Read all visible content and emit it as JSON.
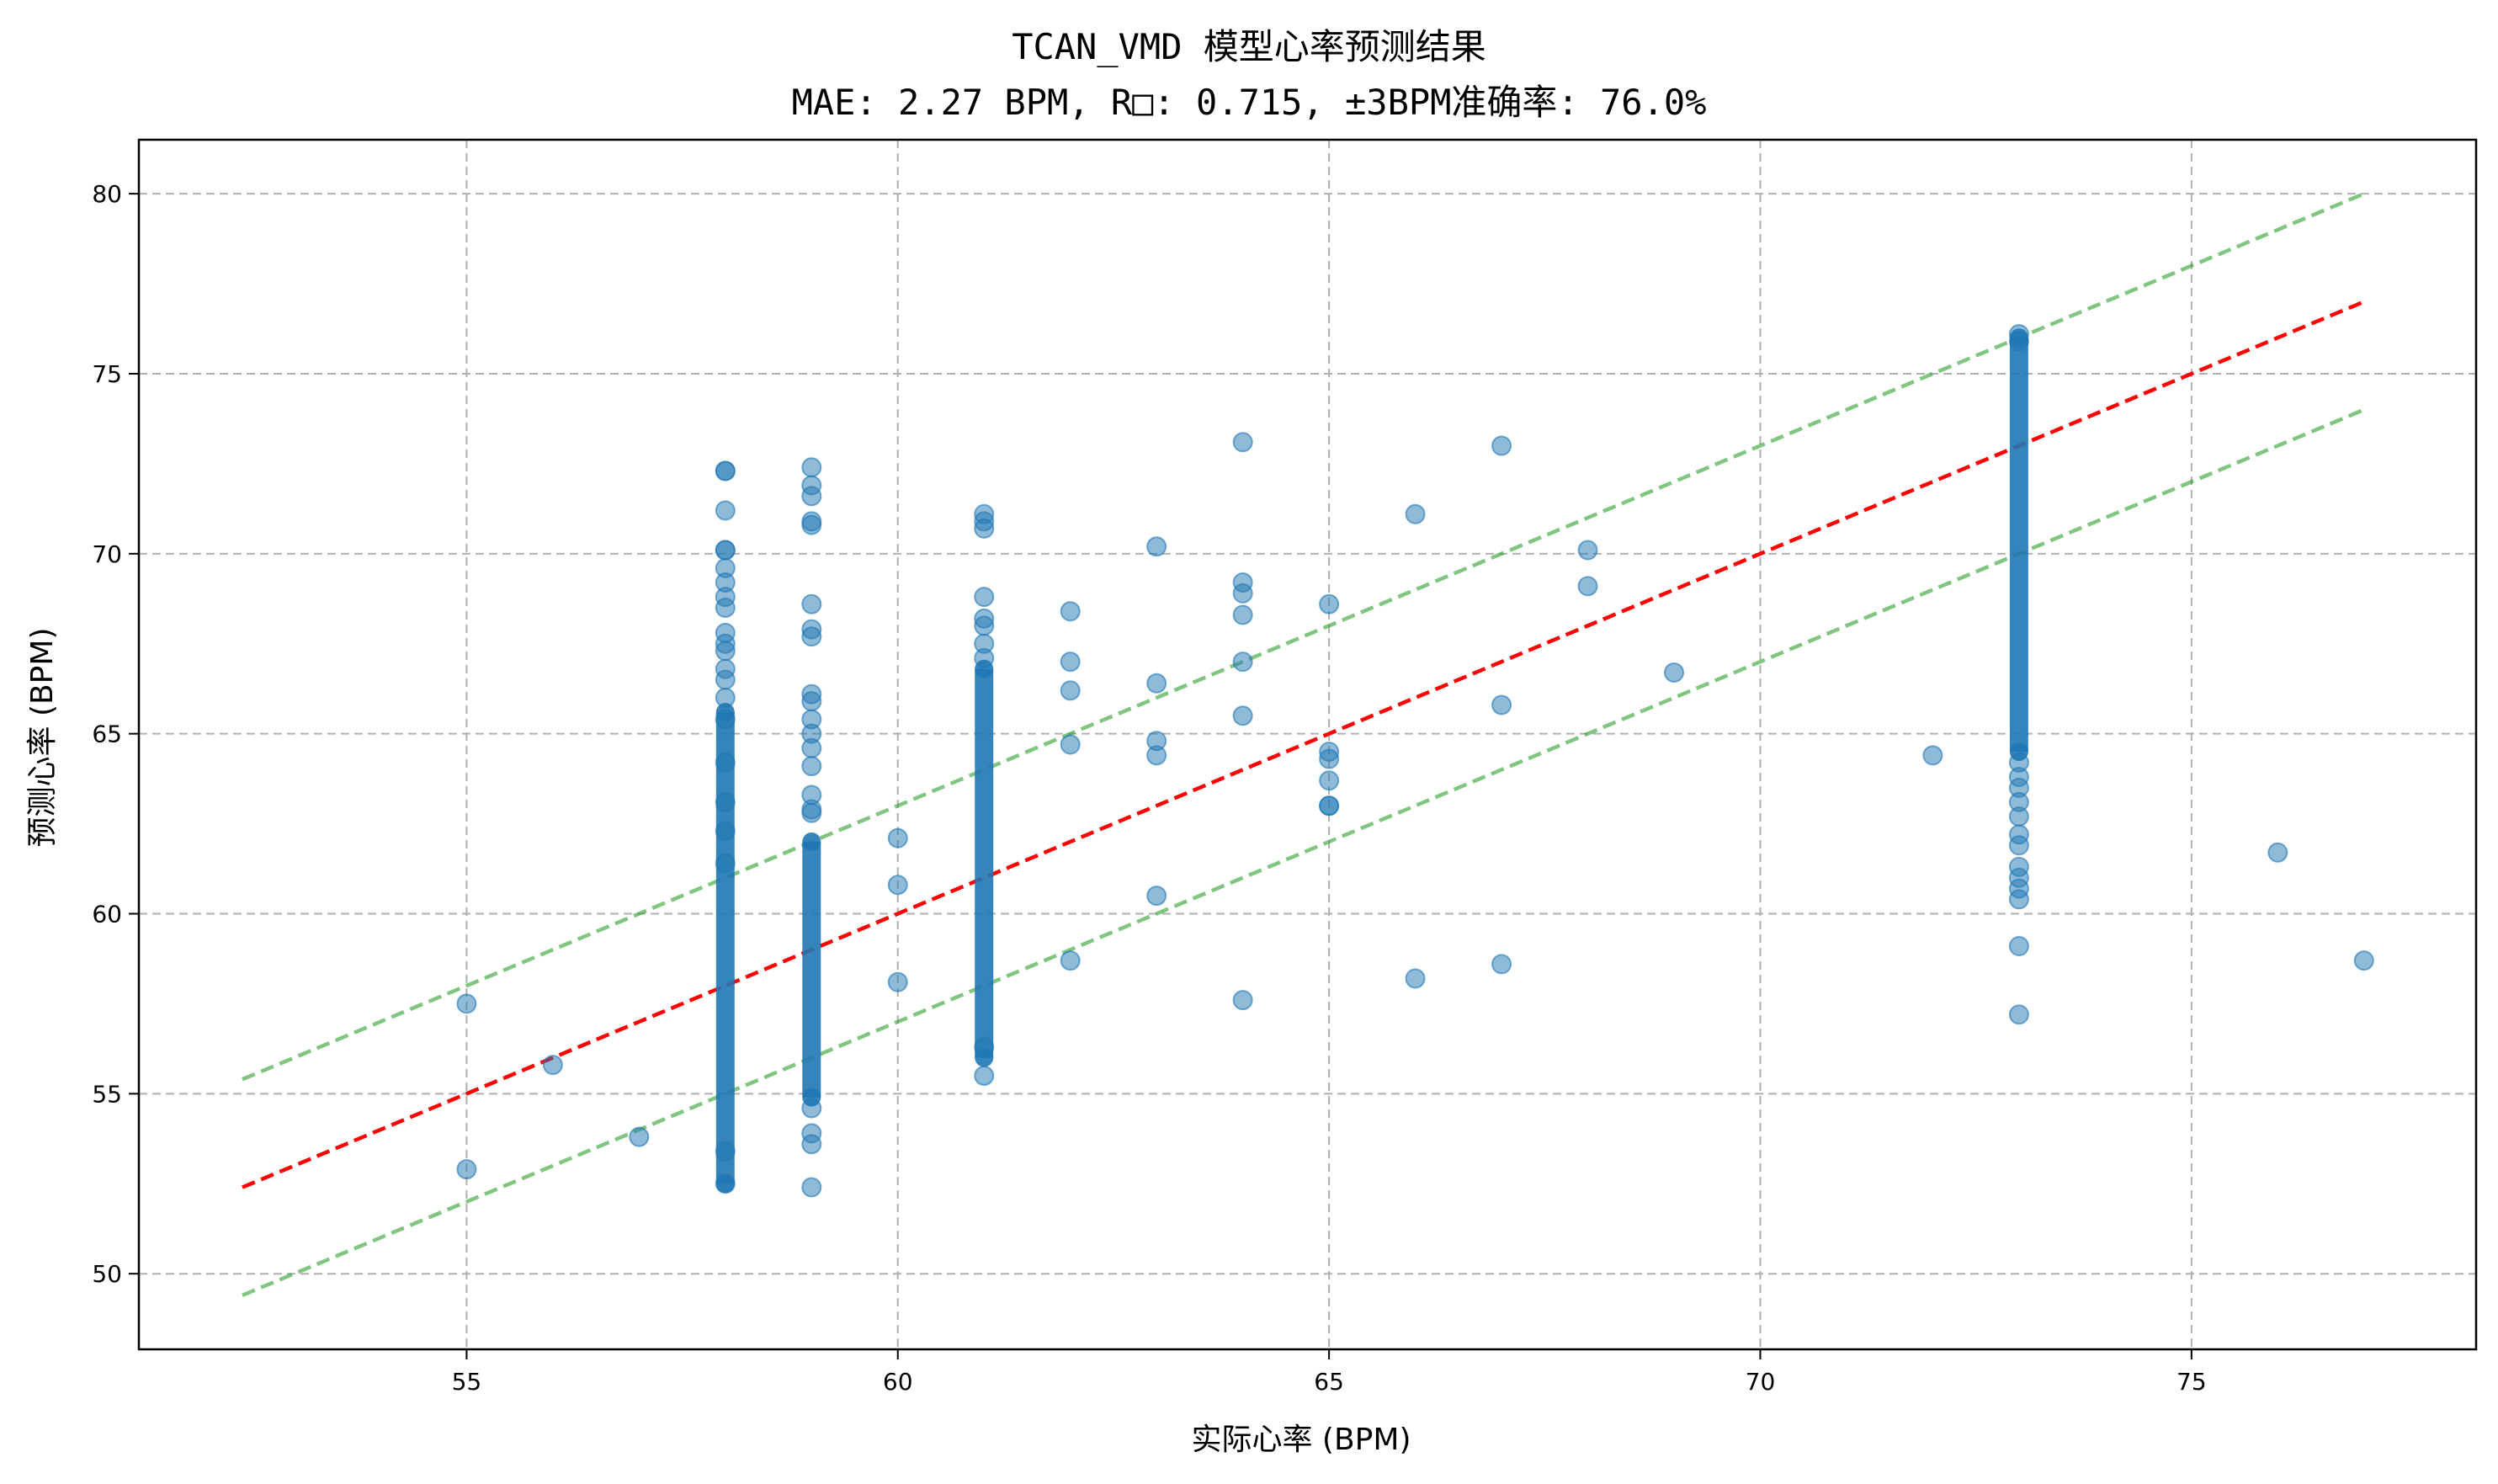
{
  "chart_data": {
    "type": "scatter",
    "title": "TCAN_VMD 模型心率预测结果",
    "subtitle": "MAE: 2.27 BPM, R□: 0.715, ±3BPM准确率: 76.0%",
    "xlabel": "实际心率 (BPM)",
    "ylabel": "预测心率 (BPM)",
    "xlim": [
      51.2,
      78.3
    ],
    "ylim": [
      47.9,
      81.5
    ],
    "xticks": [
      55,
      60,
      65,
      70,
      75
    ],
    "yticks": [
      50,
      55,
      60,
      65,
      70,
      75,
      80
    ],
    "grid": true,
    "legend": "none",
    "colors": {
      "points": "#1f77b4",
      "ideal_line": "#ff0000",
      "band_lines": "#2ca02c"
    },
    "reference_lines": [
      {
        "kind": "ideal",
        "x": [
          52.4,
          77.0
        ],
        "y": [
          52.4,
          77.0
        ]
      },
      {
        "kind": "upper-band",
        "x": [
          52.4,
          77.0
        ],
        "y": [
          55.4,
          80.0
        ]
      },
      {
        "kind": "lower-band",
        "x": [
          52.4,
          77.0
        ],
        "y": [
          49.4,
          74.0
        ]
      }
    ],
    "points_note": "Columns at x=58, 59, 61, 73 contain many overlapping points (dense ranges).",
    "dense_columns": [
      {
        "x": 58,
        "y_min": 52.5,
        "y_max": 65.6
      },
      {
        "x": 59,
        "y_min": 54.9,
        "y_max": 62.0
      },
      {
        "x": 61,
        "y_min": 56.0,
        "y_max": 66.8
      },
      {
        "x": 73,
        "y_min": 64.5,
        "y_max": 76.0
      }
    ],
    "points": [
      {
        "x": 55,
        "y": 57.5
      },
      {
        "x": 55,
        "y": 52.9
      },
      {
        "x": 56,
        "y": 55.8
      },
      {
        "x": 57,
        "y": 53.8
      },
      {
        "x": 58,
        "y": 72.3
      },
      {
        "x": 58,
        "y": 72.3
      },
      {
        "x": 58,
        "y": 71.2
      },
      {
        "x": 58,
        "y": 70.1
      },
      {
        "x": 58,
        "y": 70.1
      },
      {
        "x": 58,
        "y": 69.6
      },
      {
        "x": 58,
        "y": 69.2
      },
      {
        "x": 58,
        "y": 68.8
      },
      {
        "x": 58,
        "y": 68.5
      },
      {
        "x": 58,
        "y": 67.8
      },
      {
        "x": 58,
        "y": 67.5
      },
      {
        "x": 58,
        "y": 67.3
      },
      {
        "x": 58,
        "y": 66.8
      },
      {
        "x": 58,
        "y": 66.5
      },
      {
        "x": 58,
        "y": 66.0
      },
      {
        "x": 58,
        "y": 65.4
      },
      {
        "x": 58,
        "y": 64.2
      },
      {
        "x": 58,
        "y": 63.1
      },
      {
        "x": 58,
        "y": 62.3
      },
      {
        "x": 58,
        "y": 61.4
      },
      {
        "x": 58,
        "y": 53.4
      },
      {
        "x": 58,
        "y": 52.5
      },
      {
        "x": 59,
        "y": 72.4
      },
      {
        "x": 59,
        "y": 71.9
      },
      {
        "x": 59,
        "y": 71.6
      },
      {
        "x": 59,
        "y": 70.9
      },
      {
        "x": 59,
        "y": 70.8
      },
      {
        "x": 59,
        "y": 68.6
      },
      {
        "x": 59,
        "y": 67.9
      },
      {
        "x": 59,
        "y": 67.7
      },
      {
        "x": 59,
        "y": 66.1
      },
      {
        "x": 59,
        "y": 65.9
      },
      {
        "x": 59,
        "y": 65.4
      },
      {
        "x": 59,
        "y": 65.0
      },
      {
        "x": 59,
        "y": 64.6
      },
      {
        "x": 59,
        "y": 64.1
      },
      {
        "x": 59,
        "y": 63.3
      },
      {
        "x": 59,
        "y": 62.9
      },
      {
        "x": 59,
        "y": 62.8
      },
      {
        "x": 59,
        "y": 54.6
      },
      {
        "x": 59,
        "y": 53.9
      },
      {
        "x": 59,
        "y": 53.6
      },
      {
        "x": 59,
        "y": 52.4
      },
      {
        "x": 60,
        "y": 62.1
      },
      {
        "x": 60,
        "y": 60.8
      },
      {
        "x": 60,
        "y": 58.1
      },
      {
        "x": 61,
        "y": 71.1
      },
      {
        "x": 61,
        "y": 70.9
      },
      {
        "x": 61,
        "y": 70.7
      },
      {
        "x": 61,
        "y": 68.8
      },
      {
        "x": 61,
        "y": 68.2
      },
      {
        "x": 61,
        "y": 68.0
      },
      {
        "x": 61,
        "y": 67.5
      },
      {
        "x": 61,
        "y": 67.1
      },
      {
        "x": 61,
        "y": 55.5
      },
      {
        "x": 61,
        "y": 56.3
      },
      {
        "x": 62,
        "y": 68.4
      },
      {
        "x": 62,
        "y": 67.0
      },
      {
        "x": 62,
        "y": 66.2
      },
      {
        "x": 62,
        "y": 64.7
      },
      {
        "x": 62,
        "y": 58.7
      },
      {
        "x": 63,
        "y": 70.2
      },
      {
        "x": 63,
        "y": 66.4
      },
      {
        "x": 63,
        "y": 64.8
      },
      {
        "x": 63,
        "y": 64.4
      },
      {
        "x": 63,
        "y": 60.5
      },
      {
        "x": 64,
        "y": 73.1
      },
      {
        "x": 64,
        "y": 69.2
      },
      {
        "x": 64,
        "y": 68.9
      },
      {
        "x": 64,
        "y": 68.3
      },
      {
        "x": 64,
        "y": 67.0
      },
      {
        "x": 64,
        "y": 65.5
      },
      {
        "x": 64,
        "y": 57.6
      },
      {
        "x": 65,
        "y": 68.6
      },
      {
        "x": 65,
        "y": 64.5
      },
      {
        "x": 65,
        "y": 64.3
      },
      {
        "x": 65,
        "y": 63.7
      },
      {
        "x": 65,
        "y": 63.0
      },
      {
        "x": 65,
        "y": 63.0
      },
      {
        "x": 66,
        "y": 71.1
      },
      {
        "x": 66,
        "y": 58.2
      },
      {
        "x": 67,
        "y": 73.0
      },
      {
        "x": 67,
        "y": 65.8
      },
      {
        "x": 67,
        "y": 58.6
      },
      {
        "x": 68,
        "y": 70.1
      },
      {
        "x": 68,
        "y": 69.1
      },
      {
        "x": 69,
        "y": 66.7
      },
      {
        "x": 72,
        "y": 64.4
      },
      {
        "x": 73,
        "y": 76.1
      },
      {
        "x": 73,
        "y": 75.9
      },
      {
        "x": 73,
        "y": 64.2
      },
      {
        "x": 73,
        "y": 63.8
      },
      {
        "x": 73,
        "y": 63.5
      },
      {
        "x": 73,
        "y": 63.1
      },
      {
        "x": 73,
        "y": 62.7
      },
      {
        "x": 73,
        "y": 62.2
      },
      {
        "x": 73,
        "y": 61.9
      },
      {
        "x": 73,
        "y": 61.3
      },
      {
        "x": 73,
        "y": 61.0
      },
      {
        "x": 73,
        "y": 60.7
      },
      {
        "x": 73,
        "y": 60.4
      },
      {
        "x": 73,
        "y": 59.1
      },
      {
        "x": 73,
        "y": 57.2
      },
      {
        "x": 76,
        "y": 61.7
      },
      {
        "x": 77,
        "y": 58.7
      }
    ]
  }
}
